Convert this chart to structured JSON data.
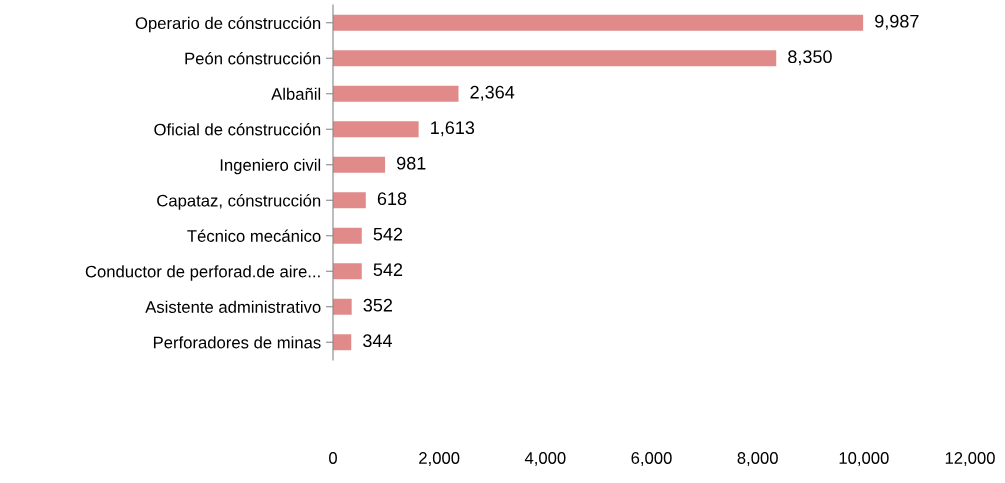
{
  "chart_data": {
    "type": "bar",
    "orientation": "horizontal",
    "categories": [
      "Operario de cónstrucción",
      "Peón cónstrucción",
      "Albañil",
      "Oficial de cónstrucción",
      "Ingeniero civil",
      "Capataz, cónstrucción",
      "Técnico mecánico",
      "Conductor de perforad.de aire...",
      "Asistente administrativo",
      "Perforadores de minas"
    ],
    "values": [
      9987,
      8350,
      2364,
      1613,
      981,
      618,
      542,
      542,
      352,
      344
    ],
    "value_labels": [
      "9,987",
      "8,350",
      "2,364",
      "1,613",
      "981",
      "618",
      "542",
      "542",
      "352",
      "344"
    ],
    "color": "#e08a8a",
    "xlim": [
      0,
      12000
    ],
    "xticks": [
      0,
      {
        "value": 2000,
        "label": "2,000"
      },
      {
        "value": 4000,
        "label": "4,000"
      },
      {
        "value": 6000,
        "label": "6,000"
      },
      {
        "value": 8000,
        "label": "8,000"
      },
      {
        "value": 10000,
        "label": "10,000"
      },
      {
        "value": 12000,
        "label": "12,000"
      }
    ],
    "grid": false,
    "legend": false
  }
}
